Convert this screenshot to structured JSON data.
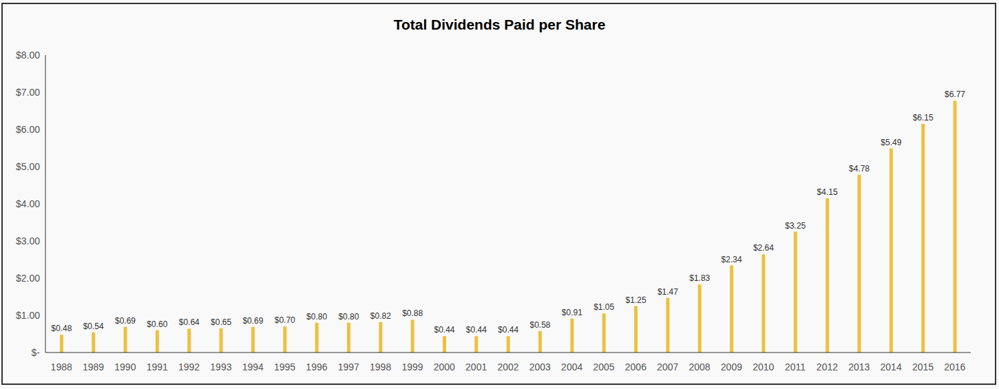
{
  "chart_data": {
    "type": "bar",
    "title": "Total Dividends Paid per Share",
    "categories": [
      "1988",
      "1989",
      "1990",
      "1991",
      "1992",
      "1993",
      "1994",
      "1995",
      "1996",
      "1997",
      "1998",
      "1999",
      "2000",
      "2001",
      "2002",
      "2003",
      "2004",
      "2005",
      "2006",
      "2007",
      "2008",
      "2009",
      "2010",
      "2011",
      "2012",
      "2013",
      "2014",
      "2015",
      "2016"
    ],
    "values": [
      0.48,
      0.54,
      0.69,
      0.6,
      0.64,
      0.65,
      0.69,
      0.7,
      0.8,
      0.8,
      0.82,
      0.88,
      0.44,
      0.44,
      0.44,
      0.58,
      0.91,
      1.05,
      1.25,
      1.47,
      1.83,
      2.34,
      2.64,
      3.25,
      4.15,
      4.78,
      5.49,
      6.15,
      6.77
    ],
    "value_labels": [
      "$0.48",
      "$0.54",
      "$0.69",
      "$0.60",
      "$0.64",
      "$0.65",
      "$0.69",
      "$0.70",
      "$0.80",
      "$0.80",
      "$0.82",
      "$0.88",
      "$0.44",
      "$0.44",
      "$0.44",
      "$0.58",
      "$0.91",
      "$1.05",
      "$1.25",
      "$1.47",
      "$1.83",
      "$2.34",
      "$2.64",
      "$3.25",
      "$4.15",
      "$4.78",
      "$5.49",
      "$6.15",
      "$6.77"
    ],
    "color": "#ecc142",
    "data_labels": true,
    "grid": false,
    "ylim": [
      0,
      8
    ],
    "yticks": [
      {
        "value": 0,
        "label": "$-"
      },
      {
        "value": 1,
        "label": "$1.00"
      },
      {
        "value": 2,
        "label": "$2.00"
      },
      {
        "value": 3,
        "label": "$3.00"
      },
      {
        "value": 4,
        "label": "$4.00"
      },
      {
        "value": 5,
        "label": "$5.00"
      },
      {
        "value": 6,
        "label": "$6.00"
      },
      {
        "value": 7,
        "label": "$7.00"
      },
      {
        "value": 8,
        "label": "$8.00"
      }
    ]
  }
}
